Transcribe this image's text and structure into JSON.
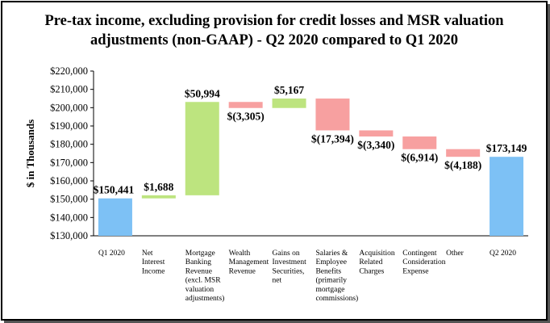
{
  "chart_data": {
    "type": "waterfall",
    "title_line1": "Pre-tax income, excluding provision for credit losses and MSR valuation",
    "title_line2": "adjustments (non-GAAP) - Q2 2020 compared to Q1 2020",
    "ylabel": "$ in Thousands",
    "ylim": [
      130000,
      220000
    ],
    "yticks": [
      "$130,000",
      "$140,000",
      "$150,000",
      "$160,000",
      "$170,000",
      "$180,000",
      "$190,000",
      "$200,000",
      "$210,000",
      "$220,000"
    ],
    "ytick_values": [
      130000,
      140000,
      150000,
      160000,
      170000,
      180000,
      190000,
      200000,
      210000,
      220000
    ],
    "categories": [
      [
        "Q1 2020"
      ],
      [
        "Net",
        "Interest",
        "Income"
      ],
      [
        "Mortgage",
        "Banking",
        "Revenue",
        "(excl. MSR",
        "valuation",
        "adjustments)"
      ],
      [
        "Wealth",
        "Management",
        "Revenue"
      ],
      [
        "Gains on",
        "Investment",
        "Securities,",
        "net"
      ],
      [
        "Salaries &",
        "Employee",
        "Benefits",
        "(primarily",
        "mortgage",
        "commissions)"
      ],
      [
        "Acquisition",
        "Related",
        "Charges"
      ],
      [
        "Contingent",
        "Consideration",
        "Expense"
      ],
      [
        "Other"
      ],
      [
        "Q2 2020"
      ]
    ],
    "bars": [
      {
        "kind": "total",
        "start": 130000,
        "end": 150441,
        "label": "$150,441"
      },
      {
        "kind": "increase",
        "start": 150441,
        "end": 152129,
        "label": "$1,688"
      },
      {
        "kind": "increase",
        "start": 152129,
        "end": 203123,
        "label": "$50,994"
      },
      {
        "kind": "decrease",
        "start": 203123,
        "end": 199818,
        "label": "$(3,305)"
      },
      {
        "kind": "increase",
        "start": 199818,
        "end": 204985,
        "label": "$5,167"
      },
      {
        "kind": "decrease",
        "start": 204985,
        "end": 187591,
        "label": "$(17,394)"
      },
      {
        "kind": "decrease",
        "start": 187591,
        "end": 184251,
        "label": "$(3,340)"
      },
      {
        "kind": "decrease",
        "start": 184251,
        "end": 177337,
        "label": "$(6,914)"
      },
      {
        "kind": "decrease",
        "start": 177337,
        "end": 173149,
        "label": "$(4,188)"
      },
      {
        "kind": "total",
        "start": 130000,
        "end": 173149,
        "label": "$173,149"
      }
    ],
    "colors": {
      "total": "#7dc1f5",
      "increase": "#bde47f",
      "decrease": "#f7a0a0",
      "axis": "#000000"
    },
    "grid": false,
    "legend": "none"
  }
}
